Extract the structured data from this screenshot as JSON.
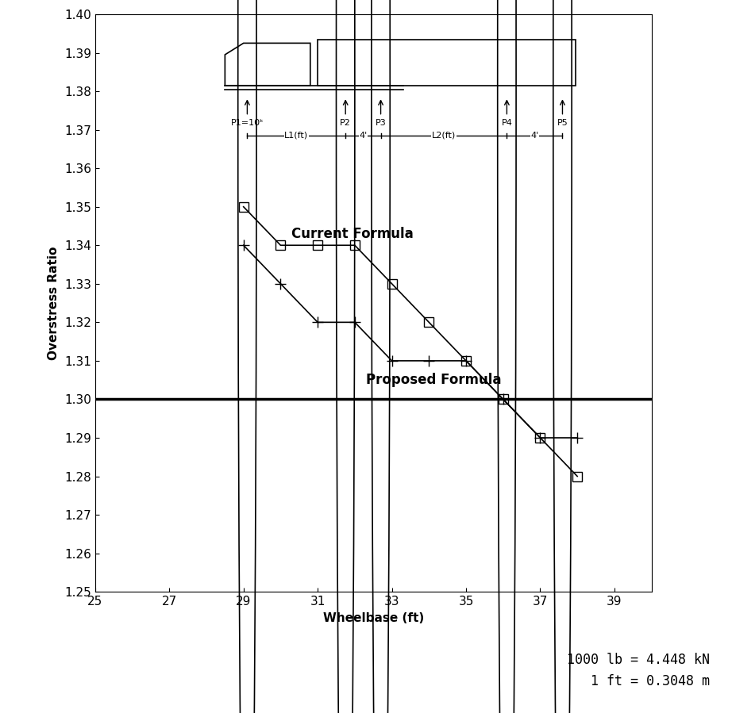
{
  "chart_data": {
    "type": "line",
    "x_label": "Wheelbase (ft)",
    "y_label": "Overstress Ratio",
    "x": [
      29,
      30,
      31,
      32,
      33,
      34,
      35,
      36,
      37,
      38
    ],
    "series": [
      {
        "name": "Current Formula",
        "color": "#000000",
        "marker": "square",
        "values": [
          1.35,
          1.34,
          1.34,
          1.34,
          1.33,
          1.32,
          1.31,
          1.3,
          1.29,
          1.28
        ]
      },
      {
        "name": "Proposed Formula",
        "color": "#000000",
        "marker": "plus",
        "values": [
          1.34,
          1.33,
          1.32,
          1.32,
          1.31,
          1.31,
          1.31,
          1.3,
          1.29,
          1.29
        ]
      }
    ],
    "reference_line": 1.3,
    "xlim": [
      25,
      40
    ],
    "xticks": [
      25,
      27,
      29,
      31,
      33,
      35,
      37,
      39
    ],
    "ylim": [
      1.25,
      1.4
    ],
    "yticks": [
      1.25,
      1.26,
      1.27,
      1.28,
      1.29,
      {
        "value": 1.3,
        "label": "1.30"
      },
      1.31,
      1.32,
      1.33,
      1.34,
      1.35,
      1.36,
      1.37,
      1.38,
      1.39,
      {
        "value": 1.4,
        "label": "1.40"
      }
    ],
    "grid": false,
    "diagram": {
      "loads": [
        "P1=10ᵏ",
        "P2",
        "P3",
        "P4",
        "P5"
      ],
      "spacings": [
        "L1(ft)",
        "4'",
        "L2(ft)",
        "4'"
      ]
    },
    "notes": [
      "1000 lb = 4.448 kN",
      "1 ft = 0.3048 m"
    ]
  }
}
